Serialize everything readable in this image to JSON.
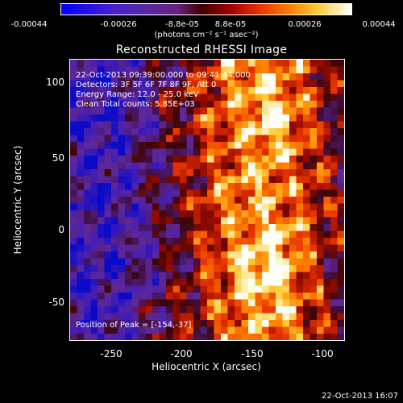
{
  "colorbar": {
    "ticks": [
      "-0.00044",
      "-0.00026",
      "-8.8e-05",
      "8.8e-05",
      "0.00026",
      "0.00044"
    ],
    "units": "(photons cm⁻² s⁻¹ asec⁻²)"
  },
  "title": "Reconstructed RHESSI Image",
  "overlay": {
    "time_range": "22-Oct-2013 09:39:00.000 to 09:41:44.000",
    "detectors": "Detectors: 3F 5F 6F 7F 8F 9F, Att 0",
    "energy": "Energy Range: 12.0 - 25.0 keV",
    "clean": "Clean     Total counts: 5.85E+03",
    "peak": "Position of Peak = [-154,-37]"
  },
  "axes": {
    "xlabel": "Heliocentric X (arcsec)",
    "ylabel": "Heliocentric Y (arcsec)",
    "xticks": [
      "-250",
      "-200",
      "-150",
      "-100"
    ],
    "yticks": [
      "100",
      "50",
      "0",
      "-50"
    ]
  },
  "footer": {
    "timestamp": "22-Oct-2013 16:07"
  }
}
